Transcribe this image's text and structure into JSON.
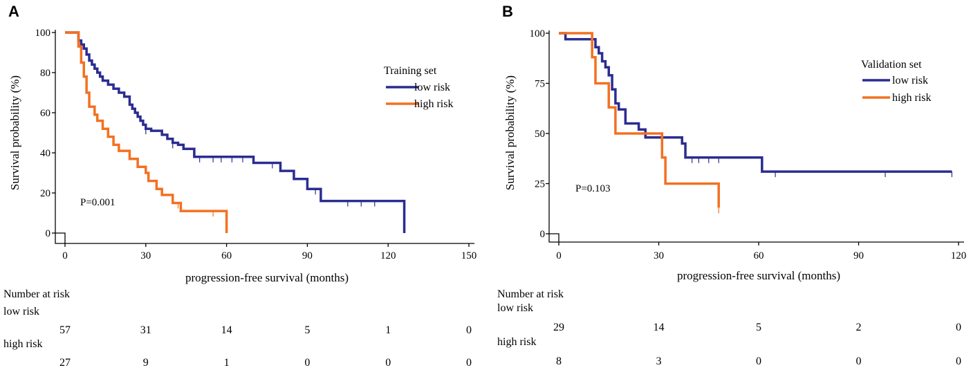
{
  "chart_data": [
    {
      "panel": "A",
      "type": "line",
      "subtype": "kaplan-meier",
      "xlabel": "progression-free survival (months)",
      "ylabel": "Survival probability (%)",
      "xlim": [
        0,
        150
      ],
      "ylim": [
        0,
        100
      ],
      "xticks": [
        0,
        30,
        60,
        90,
        120,
        150
      ],
      "yticks": [
        0,
        20,
        40,
        60,
        80,
        100
      ],
      "legend_title": "Training set",
      "p_value": "P=0.001",
      "series": [
        {
          "name": "low risk",
          "color": "#2b2c91",
          "x": [
            0,
            4,
            5,
            6,
            7,
            8,
            9,
            10,
            11,
            12,
            13,
            14,
            16,
            18,
            20,
            22,
            24,
            25,
            26,
            27,
            28,
            29,
            30,
            32,
            36,
            38,
            40,
            42,
            44,
            48,
            60,
            70,
            80,
            85,
            90,
            95,
            120,
            126
          ],
          "y": [
            100,
            100,
            96,
            94,
            92,
            89,
            86,
            84,
            82,
            80,
            78,
            76,
            74,
            72,
            70,
            68,
            64,
            62,
            60,
            58,
            56,
            54,
            52,
            51,
            49,
            47,
            45,
            44,
            42,
            38,
            38,
            35,
            31,
            27,
            22,
            16,
            16,
            0
          ],
          "censor_x": [
            30,
            40,
            50,
            55,
            58,
            62,
            66,
            77,
            93,
            105,
            110,
            115
          ]
        },
        {
          "name": "high risk",
          "color": "#f37021",
          "x": [
            0,
            3,
            5,
            6,
            7,
            8,
            9,
            11,
            12,
            14,
            16,
            18,
            20,
            24,
            27,
            30,
            31,
            34,
            36,
            40,
            41,
            43,
            50,
            55,
            60,
            60
          ],
          "y": [
            100,
            100,
            93,
            85,
            78,
            70,
            63,
            59,
            56,
            52,
            48,
            44,
            41,
            37,
            33,
            30,
            26,
            22,
            19,
            15,
            15,
            11,
            11,
            11,
            11,
            0
          ],
          "censor_x": [
            42,
            55
          ]
        }
      ],
      "risk_table": {
        "title": "Number at risk",
        "times": [
          0,
          30,
          60,
          90,
          120,
          150
        ],
        "groups": [
          {
            "name": "low risk",
            "counts": [
              "57",
              "31",
              "14",
              "5",
              "1",
              "0"
            ]
          },
          {
            "name": "high risk",
            "counts": [
              "27",
              "9",
              "1",
              "0",
              "0",
              "0"
            ]
          }
        ]
      }
    },
    {
      "panel": "B",
      "type": "line",
      "subtype": "kaplan-meier",
      "xlabel": "progression-free survival (months)",
      "ylabel": "Survival probability (%)",
      "xlim": [
        0,
        120
      ],
      "ylim": [
        0,
        100
      ],
      "xticks": [
        0,
        30,
        60,
        90,
        120
      ],
      "yticks": [
        0,
        25,
        50,
        75,
        100
      ],
      "legend_title": "Validation set",
      "p_value": "P=0.103",
      "series": [
        {
          "name": "low risk",
          "color": "#2b2c91",
          "x": [
            0,
            2,
            11,
            12,
            13,
            14,
            15,
            16,
            17,
            18,
            20,
            24,
            26,
            36,
            37,
            38,
            60,
            61,
            118
          ],
          "y": [
            100,
            97,
            93,
            90,
            86,
            83,
            79,
            72,
            65,
            62,
            55,
            52,
            48,
            48,
            45,
            38,
            38,
            31,
            31
          ],
          "censor_x": [
            40,
            42,
            45,
            48,
            65,
            98,
            118
          ]
        },
        {
          "name": "high risk",
          "color": "#f37021",
          "x": [
            0,
            6,
            10,
            11,
            15,
            17,
            31,
            32,
            48
          ],
          "y": [
            100,
            100,
            88,
            75,
            63,
            50,
            38,
            25,
            13
          ],
          "censor_x": [
            48
          ]
        }
      ],
      "risk_table": {
        "title": "Number at risk",
        "times": [
          0,
          30,
          60,
          90,
          120
        ],
        "groups": [
          {
            "name": "low risk",
            "counts": [
              "29",
              "14",
              "5",
              "2",
              "0"
            ]
          },
          {
            "name": "high risk",
            "counts": [
              "8",
              "3",
              "0",
              "0",
              "0"
            ]
          }
        ]
      }
    }
  ]
}
